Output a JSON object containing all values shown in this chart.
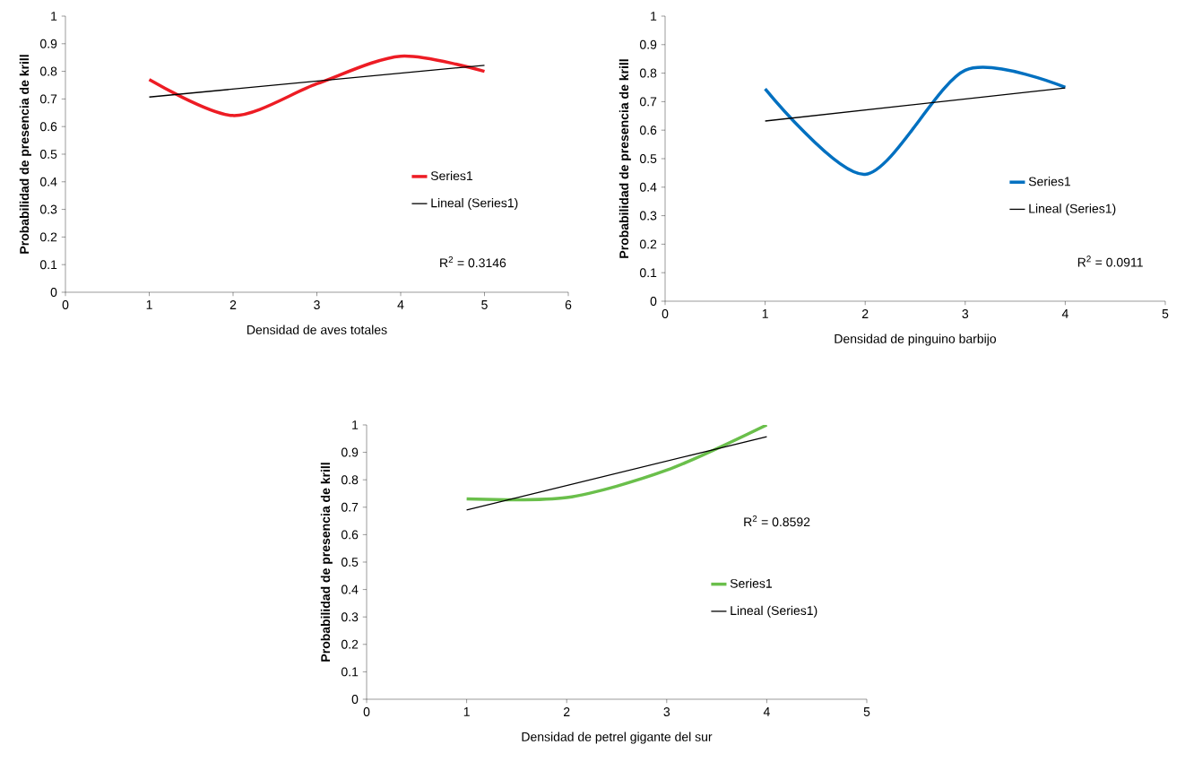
{
  "chart_data": [
    {
      "type": "line",
      "xlabel": "Densidad de aves totales",
      "ylabel": "Probabilidad de presencia de krill",
      "x": [
        1,
        2,
        3,
        4,
        5
      ],
      "xlim": [
        0,
        6
      ],
      "xticks": [
        0,
        1,
        2,
        3,
        4,
        5,
        6
      ],
      "ylim": [
        0,
        1
      ],
      "yticks": [
        0,
        0.1,
        0.2,
        0.3,
        0.4,
        0.5,
        0.6,
        0.7,
        0.8,
        0.9,
        1
      ],
      "legend": "right",
      "grid": false,
      "marker": "none",
      "series": [
        {
          "name": "Series1",
          "color": "#ed1c24",
          "values": [
            0.77,
            0.64,
            0.755,
            0.855,
            0.8
          ]
        },
        {
          "name": "Lineal (Series1)",
          "color": "#000000",
          "x": [
            1,
            5
          ],
          "values": [
            0.707,
            0.822
          ]
        }
      ],
      "annotations": [
        "R$^{2}$ = 0.3146"
      ]
    },
    {
      "type": "line",
      "xlabel": "Densidad de pinguino barbijo",
      "ylabel": "Probabilidad de presencia de krill",
      "x": [
        1,
        2,
        3,
        4
      ],
      "xlim": [
        0,
        5
      ],
      "xticks": [
        0,
        1,
        2,
        3,
        4,
        5
      ],
      "ylim": [
        0,
        1
      ],
      "yticks": [
        0,
        0.1,
        0.2,
        0.3,
        0.4,
        0.5,
        0.6,
        0.7,
        0.8,
        0.9,
        1
      ],
      "legend": "right",
      "grid": false,
      "marker": "none",
      "series": [
        {
          "name": "Series1",
          "color": "#0070c0",
          "values": [
            0.745,
            0.445,
            0.81,
            0.75
          ]
        },
        {
          "name": "Lineal (Series1)",
          "color": "#000000",
          "x": [
            1,
            4
          ],
          "values": [
            0.632,
            0.748
          ]
        }
      ],
      "annotations": [
        "R$^{2}$ = 0.0911"
      ]
    },
    {
      "type": "line",
      "xlabel": "Densidad de petrel gigante del sur",
      "ylabel": "Probabilidad de presencia de krill",
      "x": [
        1,
        2,
        3,
        4
      ],
      "xlim": [
        0,
        5
      ],
      "xticks": [
        0,
        1,
        2,
        3,
        4,
        5
      ],
      "ylim": [
        0,
        1
      ],
      "yticks": [
        0,
        0.1,
        0.2,
        0.3,
        0.4,
        0.5,
        0.6,
        0.7,
        0.8,
        0.9,
        1
      ],
      "legend": "right",
      "grid": false,
      "marker": "none",
      "series": [
        {
          "name": "Series1",
          "color": "#6abf4b",
          "values": [
            0.73,
            0.735,
            0.835,
            1
          ]
        },
        {
          "name": "Lineal (Series1)",
          "color": "#000000",
          "x": [
            1,
            4
          ],
          "values": [
            0.69,
            0.957
          ]
        }
      ],
      "annotations": [
        "R$^{2}$ = 0.8592"
      ]
    }
  ]
}
